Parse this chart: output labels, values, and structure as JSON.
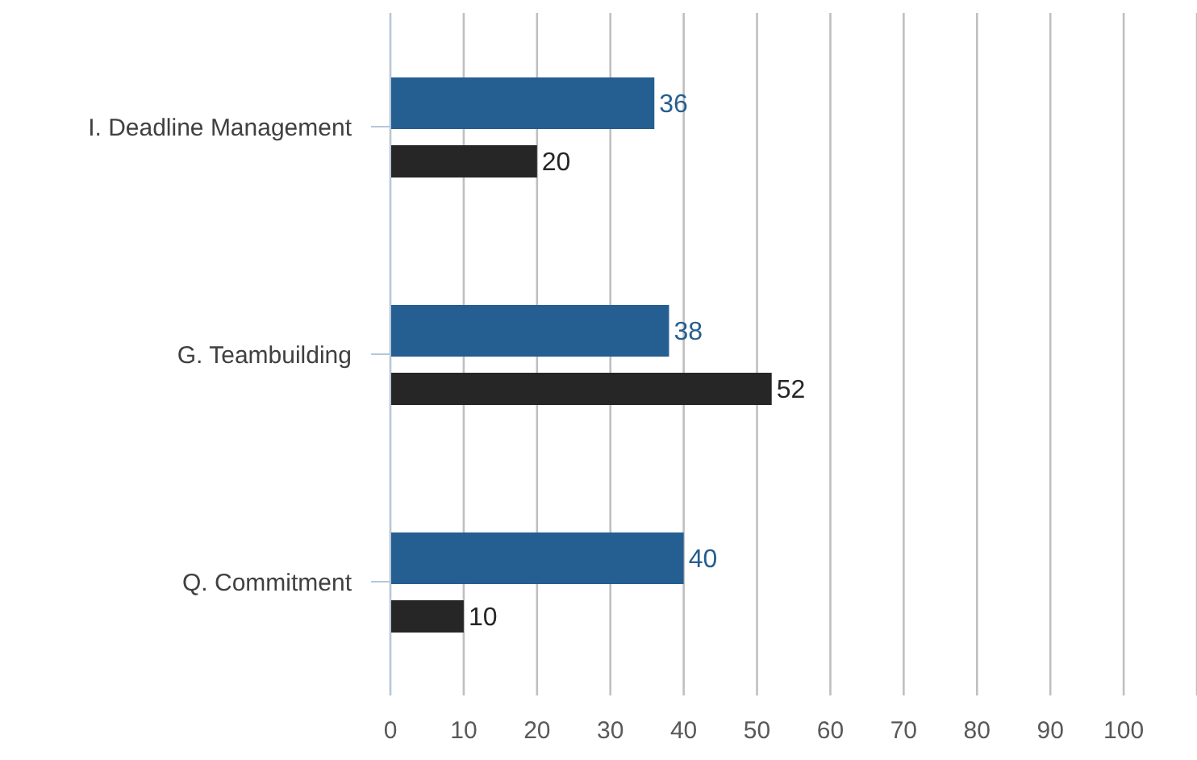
{
  "chart_data": {
    "type": "bar",
    "orientation": "horizontal",
    "categories": [
      "I. Deadline Management",
      "G. Teambuilding",
      "Q. Commitment"
    ],
    "series": [
      {
        "color": "#255e91",
        "values": [
          36,
          38,
          40
        ]
      },
      {
        "color": "#262626",
        "values": [
          20,
          52,
          10
        ]
      }
    ],
    "xlim": [
      0,
      110
    ],
    "xticks": [
      0,
      10,
      20,
      30,
      40,
      50,
      60,
      70,
      80,
      90,
      100,
      {
        "value": 110,
        "label": null
      }
    ],
    "grid": "x",
    "data_labels": true
  }
}
